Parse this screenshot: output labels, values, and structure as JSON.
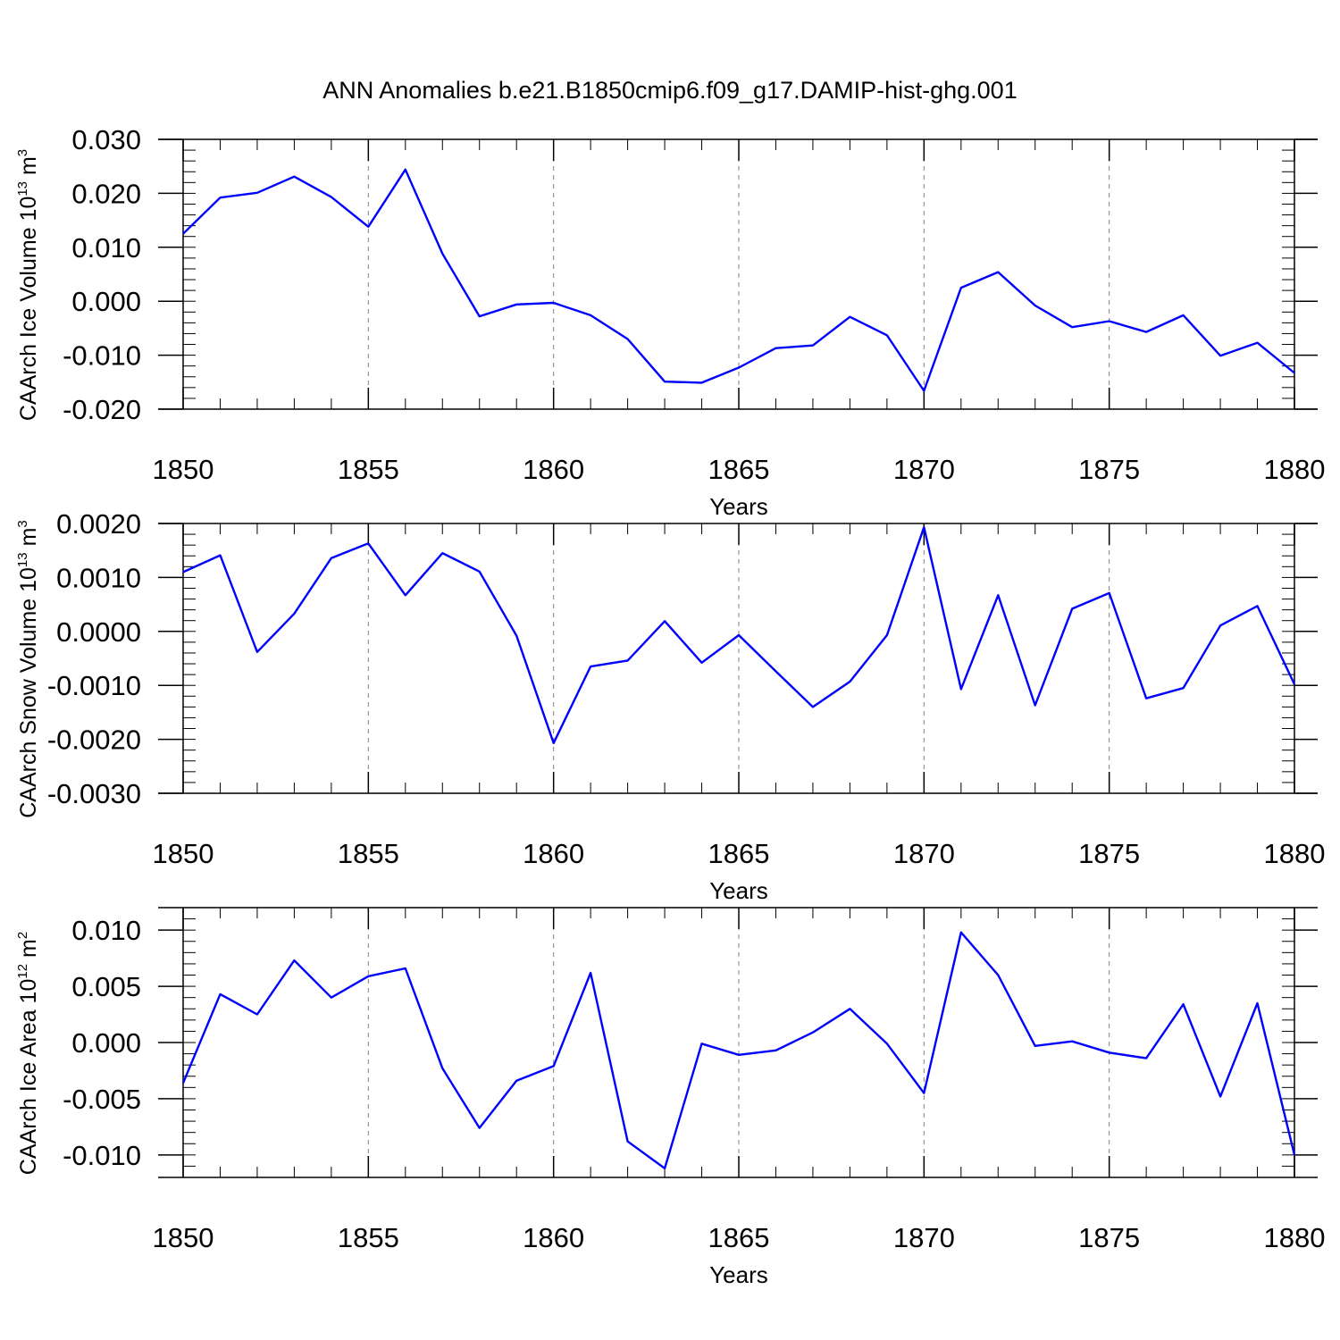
{
  "title": "ANN Anomalies b.e21.B1850cmip6.f09_g17.DAMIP-hist-ghg.001",
  "colors": {
    "line": "#0000ff",
    "axis": "#000000",
    "grid": "#808080"
  },
  "chart_data": [
    {
      "type": "line",
      "ylabel": {
        "text": "CAArch Ice Volume 10",
        "exp": "13",
        "unit": " m",
        "unit_exp": "3"
      },
      "xlabel": "Years",
      "xlim": [
        1850,
        1880
      ],
      "ylim": [
        -0.02,
        0.03
      ],
      "x_ticks": [
        1850,
        1855,
        1860,
        1865,
        1870,
        1875,
        1880
      ],
      "x_tick_labels": [
        "1850",
        "1855",
        "1860",
        "1865",
        "1870",
        "1875",
        "1880"
      ],
      "y_ticks": [
        0.03,
        0.02,
        0.01,
        0.0,
        -0.01,
        -0.02
      ],
      "y_tick_labels": [
        "0.030",
        "0.020",
        "0.010",
        "0.000",
        "-0.010",
        "-0.020"
      ],
      "grid": "vertical dashed at major x ticks",
      "x": [
        1850,
        1851,
        1852,
        1853,
        1854,
        1855,
        1856,
        1857,
        1858,
        1859,
        1860,
        1861,
        1862,
        1863,
        1864,
        1865,
        1866,
        1867,
        1868,
        1869,
        1870,
        1871,
        1872,
        1873,
        1874,
        1875,
        1876,
        1877,
        1878,
        1879,
        1880
      ],
      "values": [
        0.0125,
        0.0192,
        0.0201,
        0.0231,
        0.0193,
        0.0138,
        0.0244,
        0.0088,
        -0.0028,
        -0.0006,
        -0.0003,
        -0.0026,
        -0.007,
        -0.0149,
        -0.0151,
        -0.0123,
        -0.0087,
        -0.0082,
        -0.0029,
        -0.0063,
        -0.0166,
        0.0025,
        0.0054,
        -0.0008,
        -0.0048,
        -0.0037,
        -0.0057,
        -0.0026,
        -0.0101,
        -0.0077,
        -0.0133
      ]
    },
    {
      "type": "line",
      "ylabel": {
        "text": "CAArch Snow Volume 10",
        "exp": "13",
        "unit": " m",
        "unit_exp": "3"
      },
      "xlabel": "Years",
      "xlim": [
        1850,
        1880
      ],
      "ylim": [
        -0.003,
        0.002
      ],
      "x_ticks": [
        1850,
        1855,
        1860,
        1865,
        1870,
        1875,
        1880
      ],
      "x_tick_labels": [
        "1850",
        "1855",
        "1860",
        "1865",
        "1870",
        "1875",
        "1880"
      ],
      "y_ticks": [
        0.002,
        0.001,
        0.0,
        -0.001,
        -0.002,
        -0.003
      ],
      "y_tick_labels": [
        "0.0020",
        "0.0010",
        "0.0000",
        "-0.0010",
        "-0.0020",
        "-0.0030"
      ],
      "grid": "vertical dashed at major x ticks",
      "x": [
        1850,
        1851,
        1852,
        1853,
        1854,
        1855,
        1856,
        1857,
        1858,
        1859,
        1860,
        1861,
        1862,
        1863,
        1864,
        1865,
        1866,
        1867,
        1868,
        1869,
        1870,
        1871,
        1872,
        1873,
        1874,
        1875,
        1876,
        1877,
        1878,
        1879,
        1880
      ],
      "values": [
        0.0011,
        0.00141,
        -0.00038,
        0.00033,
        0.00136,
        0.00163,
        0.00067,
        0.00145,
        0.00111,
        -8e-05,
        -0.00207,
        -0.00065,
        -0.00054,
        0.00019,
        -0.00058,
        -7e-05,
        -0.00074,
        -0.0014,
        -0.00093,
        -7e-05,
        0.00193,
        -0.00107,
        0.00067,
        -0.00137,
        0.00042,
        0.00071,
        -0.00124,
        -0.00105,
        0.00011,
        0.00047,
        -0.00098
      ]
    },
    {
      "type": "line",
      "ylabel": {
        "text": "CAArch Ice Area 10",
        "exp": "12",
        "unit": " m",
        "unit_exp": "2"
      },
      "xlabel": "Years",
      "xlim": [
        1850,
        1880
      ],
      "ylim": [
        -0.012,
        0.012
      ],
      "x_ticks": [
        1850,
        1855,
        1860,
        1865,
        1870,
        1875,
        1880
      ],
      "x_tick_labels": [
        "1850",
        "1855",
        "1860",
        "1865",
        "1870",
        "1875",
        "1880"
      ],
      "y_ticks": [
        0.01,
        0.005,
        0.0,
        -0.005,
        -0.01
      ],
      "y_tick_labels": [
        "0.010",
        "0.005",
        "0.000",
        "-0.005",
        "-0.010"
      ],
      "grid": "vertical dashed at major x ticks",
      "x": [
        1850,
        1851,
        1852,
        1853,
        1854,
        1855,
        1856,
        1857,
        1858,
        1859,
        1860,
        1861,
        1862,
        1863,
        1864,
        1865,
        1866,
        1867,
        1868,
        1869,
        1870,
        1871,
        1872,
        1873,
        1874,
        1875,
        1876,
        1877,
        1878,
        1879,
        1880
      ],
      "values": [
        -0.0036,
        0.0043,
        0.0025,
        0.0073,
        0.004,
        0.0059,
        0.0066,
        -0.0023,
        -0.0076,
        -0.0034,
        -0.0021,
        0.0062,
        -0.0088,
        -0.0112,
        -0.0001,
        -0.0011,
        -0.0007,
        0.0009,
        0.003,
        -0.0001,
        -0.0045,
        0.0098,
        0.006,
        -0.0003,
        0.0001,
        -0.0009,
        -0.0014,
        0.0034,
        -0.0048,
        0.0035,
        -0.01
      ]
    }
  ]
}
